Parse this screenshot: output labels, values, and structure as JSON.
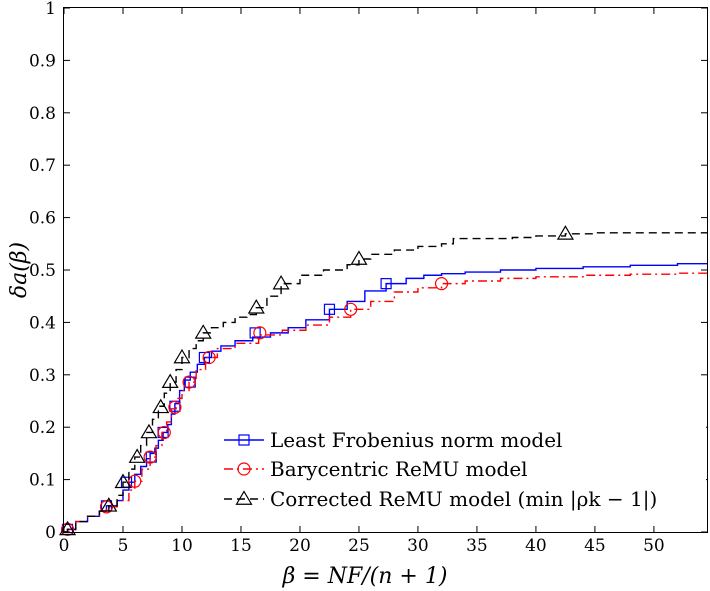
{
  "chart_data": {
    "type": "line",
    "xlabel": "β = NF/(n + 1)",
    "ylabel": "δa(β)",
    "xlim": [
      0,
      54.5
    ],
    "ylim": [
      0,
      1
    ],
    "xticks": [
      0,
      5,
      10,
      15,
      20,
      25,
      30,
      35,
      40,
      45,
      50
    ],
    "yticks": [
      0,
      0.1,
      0.2,
      0.3,
      0.4,
      0.5,
      0.6,
      0.7,
      0.8,
      0.9,
      1
    ],
    "grid": false,
    "legend_position": "bottom-right",
    "series": [
      {
        "name": "Least Frobenius norm model",
        "color": "#0000ff",
        "line_style": "solid",
        "marker": "square",
        "x": [
          0,
          0.3,
          1,
          2,
          3,
          3.6,
          4.5,
          5,
          5.5,
          6,
          6.5,
          7,
          7.3,
          7.7,
          8,
          8.4,
          8.8,
          9.1,
          9.4,
          9.8,
          10.2,
          10.7,
          11.3,
          11.9,
          12.5,
          13.3,
          14.5,
          16,
          17.5,
          19,
          20.5,
          22.5,
          24,
          25.5,
          27.3,
          29,
          30.5,
          32,
          34,
          37,
          40,
          44,
          48,
          52,
          54.5
        ],
        "y": [
          0,
          0.005,
          0.02,
          0.03,
          0.04,
          0.05,
          0.06,
          0.08,
          0.095,
          0.11,
          0.125,
          0.14,
          0.15,
          0.16,
          0.175,
          0.19,
          0.205,
          0.225,
          0.245,
          0.27,
          0.29,
          0.305,
          0.32,
          0.333,
          0.345,
          0.355,
          0.365,
          0.372,
          0.38,
          0.39,
          0.405,
          0.425,
          0.44,
          0.46,
          0.474,
          0.484,
          0.49,
          0.493,
          0.496,
          0.5,
          0.503,
          0.506,
          0.509,
          0.512,
          0.513
        ],
        "markers_x": [
          0.3,
          3.6,
          5.3,
          7.4,
          8.4,
          9.4,
          10.7,
          11.9,
          16.2,
          22.5,
          27.3
        ],
        "markers_y": [
          0.005,
          0.05,
          0.095,
          0.143,
          0.19,
          0.24,
          0.286,
          0.333,
          0.38,
          0.425,
          0.474
        ]
      },
      {
        "name": "Barycentric ReMU model",
        "color": "#ff0000",
        "line_style": "dash-dot",
        "marker": "circle",
        "x": [
          0,
          0.3,
          1,
          2,
          3,
          3.6,
          4.5,
          5.5,
          6,
          6.6,
          7.3,
          7.8,
          8.3,
          8.7,
          9.1,
          9.5,
          10,
          10.6,
          11.2,
          12,
          13,
          14.5,
          16.5,
          18.5,
          20.5,
          22.5,
          24.3,
          26,
          28,
          30,
          32,
          34,
          37,
          40,
          44,
          48,
          52,
          54.5
        ],
        "y": [
          0,
          0.005,
          0.02,
          0.03,
          0.04,
          0.048,
          0.06,
          0.08,
          0.097,
          0.12,
          0.143,
          0.165,
          0.19,
          0.21,
          0.235,
          0.255,
          0.27,
          0.286,
          0.31,
          0.333,
          0.35,
          0.36,
          0.376,
          0.385,
          0.395,
          0.41,
          0.425,
          0.44,
          0.458,
          0.466,
          0.474,
          0.479,
          0.484,
          0.487,
          0.49,
          0.492,
          0.494,
          0.495
        ],
        "markers_x": [
          0.3,
          3.6,
          6.0,
          7.3,
          8.5,
          9.4,
          10.6,
          12.3,
          16.6,
          24.3,
          32
        ],
        "markers_y": [
          0.005,
          0.048,
          0.097,
          0.143,
          0.19,
          0.238,
          0.286,
          0.333,
          0.38,
          0.425,
          0.474
        ]
      },
      {
        "name": "Corrected ReMU model (min |ρk − 1|)",
        "color": "#000000",
        "line_style": "dashed",
        "marker": "triangle",
        "x": [
          0,
          0.3,
          1,
          2,
          3,
          3.8,
          4.5,
          5,
          5.5,
          6,
          6.5,
          7,
          7.5,
          8,
          8.5,
          9,
          9.5,
          10,
          10.6,
          11.2,
          11.8,
          12.5,
          13.5,
          14.5,
          15.5,
          16.3,
          17.2,
          18.4,
          20,
          22,
          24,
          25,
          26,
          28,
          30,
          32,
          33,
          35,
          38,
          40,
          42.5,
          45,
          48,
          51,
          54.5
        ],
        "y": [
          0,
          0.005,
          0.02,
          0.03,
          0.04,
          0.05,
          0.07,
          0.095,
          0.12,
          0.143,
          0.165,
          0.19,
          0.215,
          0.24,
          0.265,
          0.286,
          0.31,
          0.333,
          0.35,
          0.365,
          0.38,
          0.39,
          0.4,
          0.41,
          0.415,
          0.428,
          0.45,
          0.474,
          0.49,
          0.5,
          0.51,
          0.521,
          0.53,
          0.538,
          0.545,
          0.55,
          0.56,
          0.56,
          0.562,
          0.565,
          0.569,
          0.571,
          0.571,
          0.571,
          0.571
        ],
        "markers_x": [
          0.3,
          3.8,
          5.0,
          6.2,
          7.2,
          8.2,
          9.0,
          10.0,
          11.8,
          16.3,
          18.4,
          25.0,
          42.5
        ],
        "markers_y": [
          0.005,
          0.05,
          0.095,
          0.143,
          0.19,
          0.238,
          0.286,
          0.333,
          0.38,
          0.428,
          0.474,
          0.521,
          0.569
        ]
      }
    ]
  }
}
